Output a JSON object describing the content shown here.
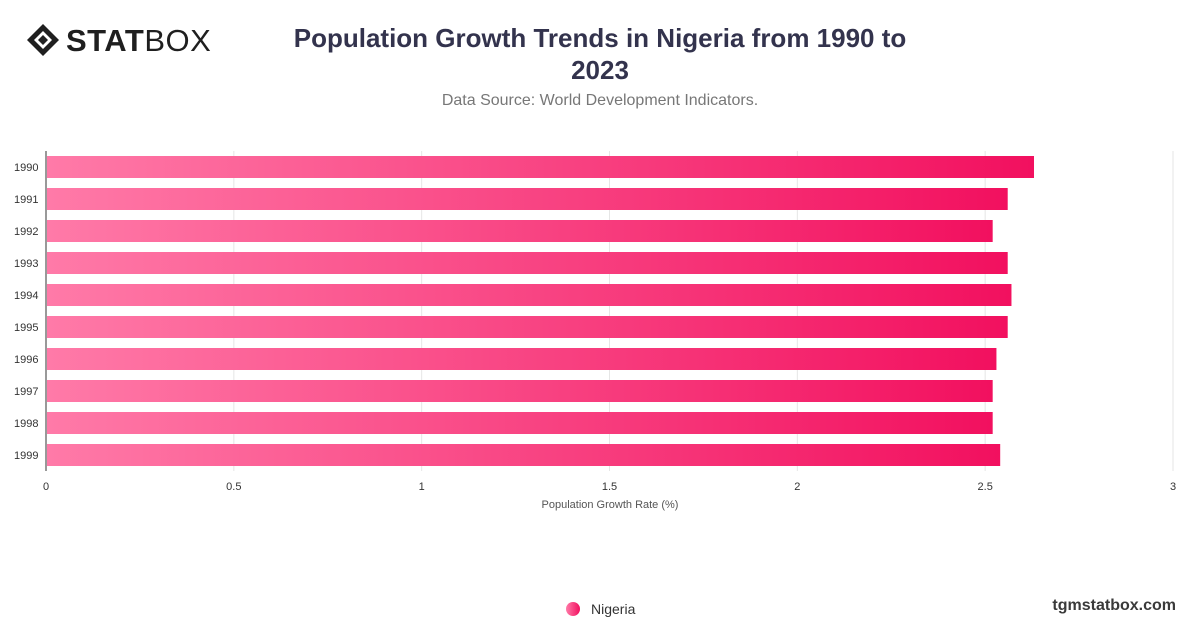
{
  "brand": {
    "logo_bold": "STAT",
    "logo_light": "BOX"
  },
  "header": {
    "title": "Population Growth Trends in Nigeria from 1990 to 2023",
    "subtitle": "Data Source: World Development Indicators."
  },
  "legend": {
    "label": "Nigeria"
  },
  "footer": {
    "watermark": "tgmstatbox.com"
  },
  "colors": {
    "bar_start": "#ff7aa8",
    "bar_end": "#f2105f",
    "grid": "#e6e6e6",
    "axis": "#333333"
  },
  "chart_data": {
    "type": "bar",
    "orientation": "horizontal",
    "categories": [
      "1990",
      "1991",
      "1992",
      "1993",
      "1994",
      "1995",
      "1996",
      "1997",
      "1998",
      "1999"
    ],
    "series": [
      {
        "name": "Nigeria",
        "values": [
          2.63,
          2.56,
          2.52,
          2.56,
          2.57,
          2.56,
          2.53,
          2.52,
          2.52,
          2.54
        ]
      }
    ],
    "xlabel": "Population Growth Rate (%)",
    "ylabel": "",
    "xlim": [
      0,
      3
    ],
    "xticks": [
      "0",
      "0.5",
      "1",
      "1.5",
      "2",
      "2.5",
      "3"
    ],
    "grid": true,
    "legend_position": "bottom-center"
  }
}
